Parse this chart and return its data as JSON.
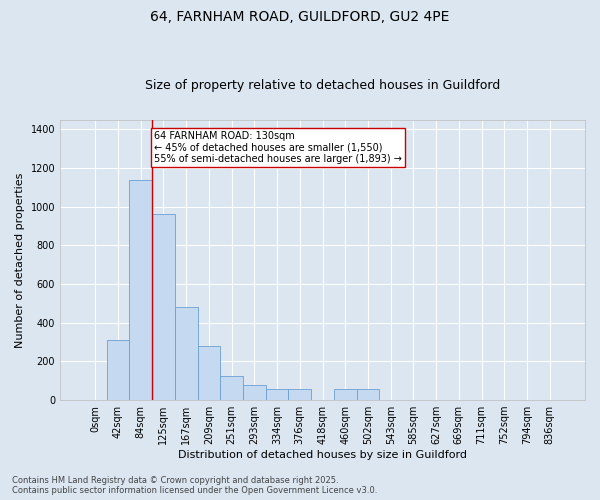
{
  "title_line1": "64, FARNHAM ROAD, GUILDFORD, GU2 4PE",
  "title_line2": "Size of property relative to detached houses in Guildford",
  "xlabel": "Distribution of detached houses by size in Guildford",
  "ylabel": "Number of detached properties",
  "categories": [
    "0sqm",
    "42sqm",
    "84sqm",
    "125sqm",
    "167sqm",
    "209sqm",
    "251sqm",
    "293sqm",
    "334sqm",
    "376sqm",
    "418sqm",
    "460sqm",
    "502sqm",
    "543sqm",
    "585sqm",
    "627sqm",
    "669sqm",
    "711sqm",
    "752sqm",
    "794sqm",
    "836sqm"
  ],
  "values": [
    0,
    310,
    1135,
    960,
    480,
    280,
    125,
    80,
    55,
    55,
    0,
    55,
    55,
    0,
    0,
    0,
    0,
    0,
    0,
    0,
    0
  ],
  "bar_color": "#c5d9f1",
  "bar_edge_color": "#6b9fd4",
  "background_color": "#dce6f1",
  "fig_background_color": "#dce6f1",
  "grid_color": "#ffffff",
  "vline_x": 2.5,
  "vline_color": "#cc0000",
  "annotation_text": "64 FARNHAM ROAD: 130sqm\n← 45% of detached houses are smaller (1,550)\n55% of semi-detached houses are larger (1,893) →",
  "annotation_box_color": "#ffffff",
  "annotation_box_edge": "#cc0000",
  "ylim": [
    0,
    1450
  ],
  "yticks": [
    0,
    200,
    400,
    600,
    800,
    1000,
    1200,
    1400
  ],
  "footnote": "Contains HM Land Registry data © Crown copyright and database right 2025.\nContains public sector information licensed under the Open Government Licence v3.0.",
  "title_fontsize": 10,
  "subtitle_fontsize": 9,
  "axis_fontsize": 8,
  "tick_fontsize": 7
}
